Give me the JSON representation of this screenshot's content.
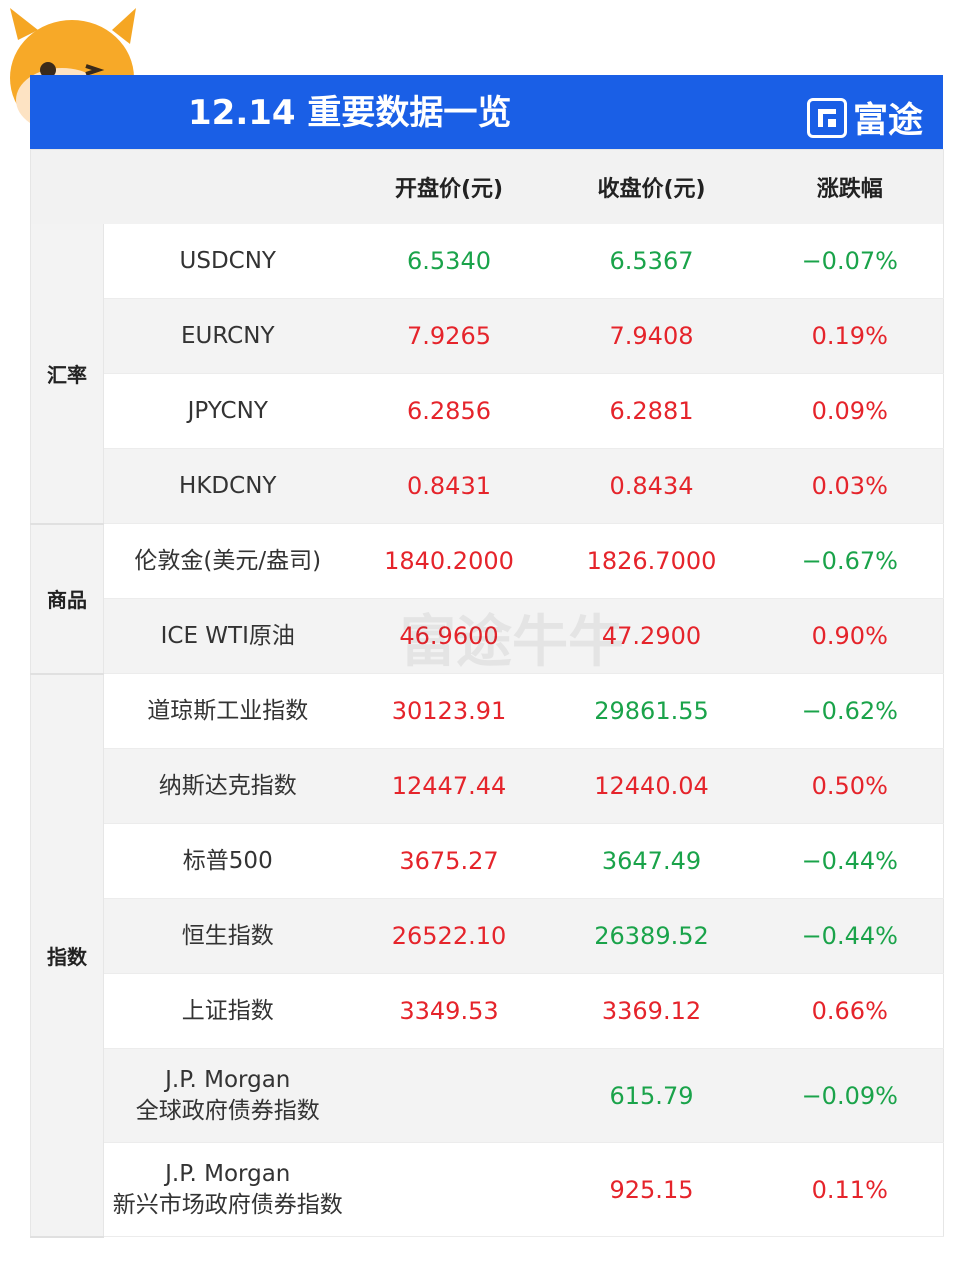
{
  "header": {
    "title": "12.14 重要数据一览",
    "brand": "富途"
  },
  "columns": [
    "开盘价(元)",
    "收盘价(元)",
    "涨跌幅"
  ],
  "groups": [
    "汇率",
    "商品",
    "指数"
  ],
  "rows": [
    {
      "name": "USDCNY",
      "open": "6.5340",
      "close": "6.5367",
      "change": "−0.07%"
    },
    {
      "name": "EURCNY",
      "open": "7.9265",
      "close": "7.9408",
      "change": "0.19%"
    },
    {
      "name": "JPYCNY",
      "open": "6.2856",
      "close": "6.2881",
      "change": "0.09%"
    },
    {
      "name": "HKDCNY",
      "open": "0.8431",
      "close": "0.8434",
      "change": "0.03%"
    },
    {
      "name": "伦敦金(美元/盎司)",
      "open": "1840.2000",
      "close": "1826.7000",
      "change": "−0.67%"
    },
    {
      "name": "ICE WTI原油",
      "open": "46.9600",
      "close": "47.2900",
      "change": "0.90%"
    },
    {
      "name": "道琼斯工业指数",
      "open": "30123.91",
      "close": "29861.55",
      "change": "−0.62%"
    },
    {
      "name": "纳斯达克指数",
      "open": "12447.44",
      "close": "12440.04",
      "change": "0.50%"
    },
    {
      "name": "标普500",
      "open": "3675.27",
      "close": "3647.49",
      "change": "−0.44%"
    },
    {
      "name": "恒生指数",
      "open": "26522.10",
      "close": "26389.52",
      "change": "−0.44%"
    },
    {
      "name": "上证指数",
      "open": "3349.53",
      "close": "3369.12",
      "change": "0.66%"
    },
    {
      "name": "J.P. Morgan",
      "name2": "全球政府债券指数",
      "open": "",
      "close": "615.79",
      "change": "−0.09%"
    },
    {
      "name": "J.P. Morgan",
      "name2": "新兴市场政府债券指数",
      "open": "",
      "close": "925.15",
      "change": "0.11%"
    }
  ],
  "watermark": "富途牛牛",
  "colors": {
    "header": "#1a5fe6",
    "up": "#e5242b",
    "down": "#1aa34a"
  }
}
